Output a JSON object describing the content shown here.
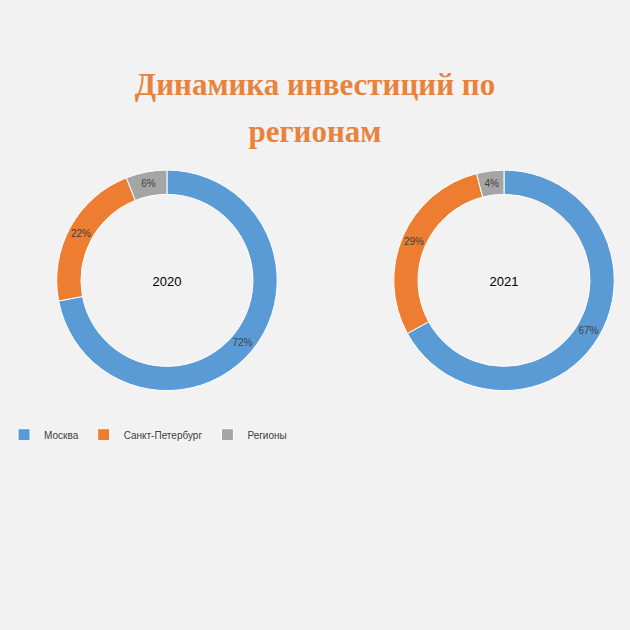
{
  "title": "Динамика инвестиций по регионам",
  "chart_data": [
    {
      "type": "donut",
      "title": "2020",
      "categories": [
        "Москва",
        "Санкт-Петербург",
        "Регионы"
      ],
      "values": [
        72,
        22,
        6
      ],
      "value_labels": [
        "72%",
        "22%",
        "6%"
      ],
      "colors": [
        "#5b9bd5",
        "#ed7d31",
        "#a5a5a5"
      ],
      "data_labels": true,
      "legend": "bottom"
    },
    {
      "type": "donut",
      "title": "2021",
      "categories": [
        "Москва",
        "Санкт-Петербург",
        "Регионы"
      ],
      "values": [
        67,
        29,
        4
      ],
      "value_labels": [
        "67%",
        "29%",
        "4%"
      ],
      "colors": [
        "#5b9bd5",
        "#ed7d31",
        "#a5a5a5"
      ],
      "data_labels": true,
      "legend": "bottom"
    }
  ]
}
